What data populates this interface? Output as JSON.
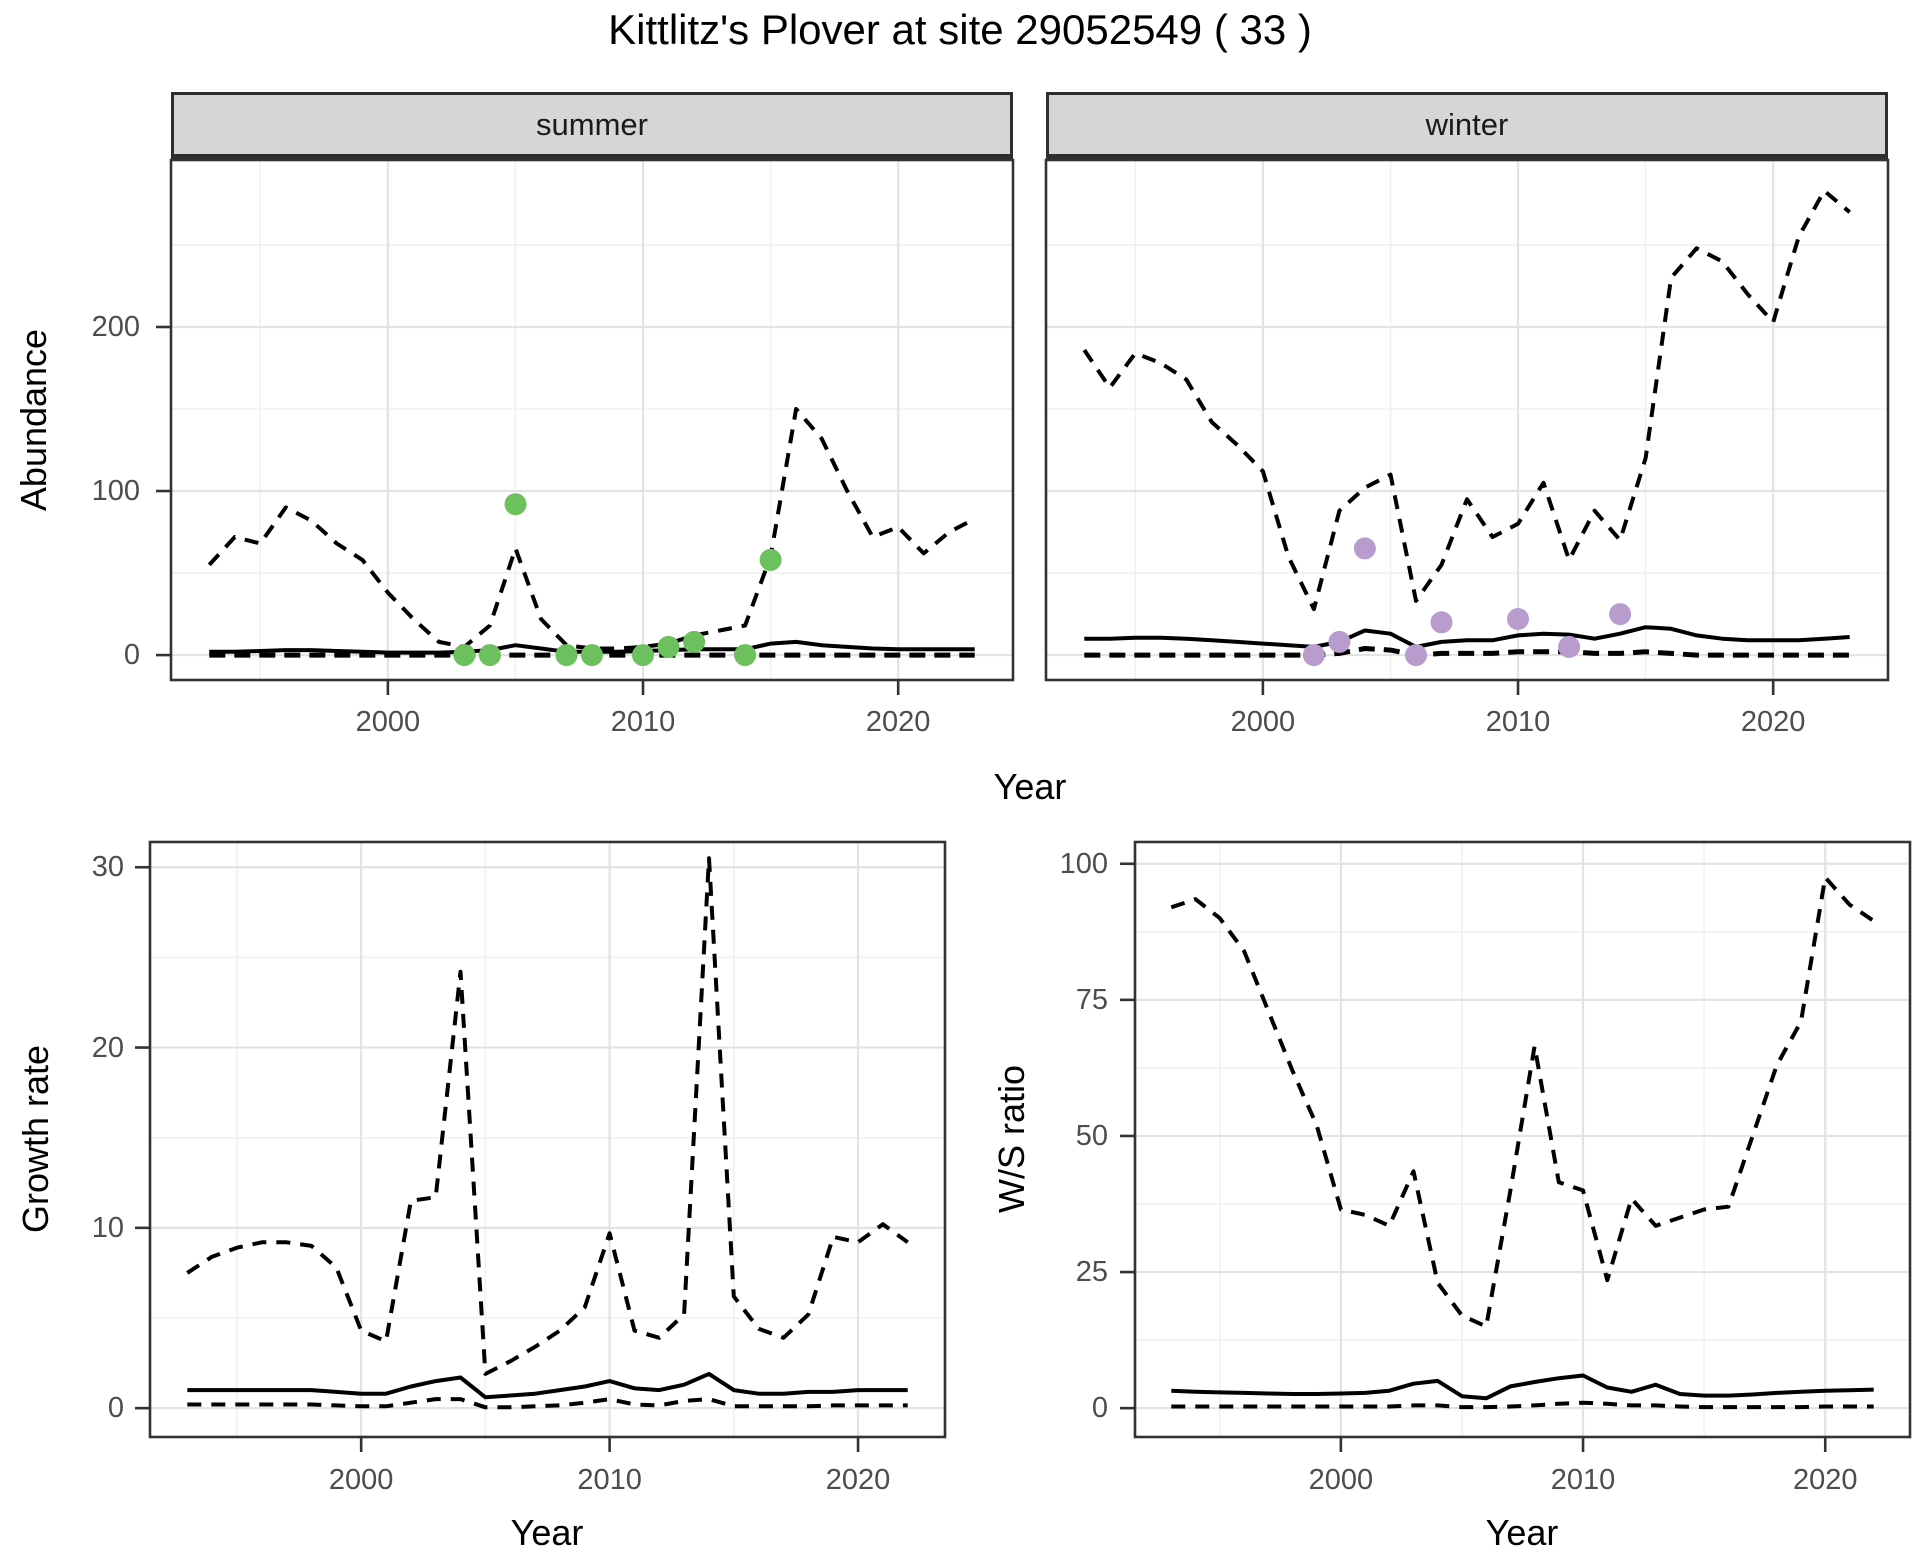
{
  "title": "Kittlitz's Plover at site 29052549 ( 33 )",
  "colors": {
    "summer_points": "#6cc05e",
    "winter_points": "#b79ccd",
    "line": "#000000",
    "grid_major": "#e3e3e3",
    "grid_minor": "#f1f1f1",
    "panel_border": "#333333",
    "tick_mark": "#333333",
    "strip_bg": "#d6d6d6",
    "tick_text": "#4d4d4d"
  },
  "chart_data": [
    {
      "id": "abundance",
      "type": "line",
      "xlabel": "Year",
      "ylabel": "Abundance",
      "grid": "on",
      "legend": "none",
      "x_ticks": [
        2000,
        2010,
        2020
      ],
      "y_ticks": [
        0,
        100,
        200
      ],
      "xlim": [
        1991.5,
        2024.5
      ],
      "ylim": [
        -15.2,
        301.8
      ],
      "years": [
        1993,
        1994,
        1995,
        1996,
        1997,
        1998,
        1999,
        2000,
        2001,
        2002,
        2003,
        2004,
        2005,
        2006,
        2007,
        2008,
        2009,
        2010,
        2011,
        2012,
        2013,
        2014,
        2015,
        2016,
        2017,
        2018,
        2019,
        2020,
        2021,
        2022,
        2023
      ],
      "facets": [
        {
          "label": "summer",
          "series": [
            {
              "name": "upper-ci",
              "style": "dashed",
              "values": [
                55,
                72,
                68,
                90,
                82,
                68,
                58,
                38,
                22,
                8,
                5,
                18,
                65,
                22,
                6,
                4,
                4,
                5,
                7,
                12,
                15,
                18,
                60,
                150,
                132,
                100,
                72,
                78,
                62,
                75,
                83
              ]
            },
            {
              "name": "median",
              "style": "solid",
              "values": [
                2,
                2,
                2.5,
                3,
                3,
                2.5,
                2,
                1.5,
                1.5,
                1.5,
                2,
                3,
                6,
                4,
                2,
                2,
                2,
                2.5,
                3,
                3.5,
                3.5,
                3.5,
                7,
                8,
                6,
                5,
                4,
                3.5,
                3.5,
                3.5,
                3.5
              ]
            },
            {
              "name": "lower-ci",
              "style": "dashed",
              "values": [
                0,
                0,
                0,
                0,
                0,
                0,
                0,
                0,
                0,
                0,
                0,
                0,
                0,
                0,
                0,
                0,
                0,
                0,
                0,
                0,
                0,
                0,
                0,
                0,
                0,
                0,
                0,
                0,
                0,
                0,
                0
              ]
            }
          ],
          "points": {
            "color_key": "summer_points",
            "data": [
              [
                2003,
                0
              ],
              [
                2004,
                0
              ],
              [
                2005,
                92
              ],
              [
                2007,
                0
              ],
              [
                2008,
                0
              ],
              [
                2010,
                0
              ],
              [
                2011,
                5
              ],
              [
                2012,
                8
              ],
              [
                2014,
                0
              ],
              [
                2015,
                58
              ]
            ]
          }
        },
        {
          "label": "winter",
          "series": [
            {
              "name": "upper-ci",
              "style": "dashed",
              "values": [
                186,
                163,
                184,
                178,
                168,
                142,
                128,
                112,
                60,
                28,
                88,
                102,
                110,
                33,
                55,
                95,
                72,
                80,
                105,
                58,
                88,
                70,
                120,
                230,
                248,
                240,
                220,
                203,
                255,
                283,
                270
              ]
            },
            {
              "name": "median",
              "style": "solid",
              "values": [
                10,
                10,
                10.5,
                10.5,
                10,
                9,
                8,
                7,
                6,
                5,
                8,
                15,
                13,
                5,
                8,
                9,
                9,
                12,
                13,
                12.5,
                10,
                13,
                17,
                16,
                12,
                10,
                9,
                9,
                9,
                10,
                11
              ]
            },
            {
              "name": "lower-ci",
              "style": "dashed",
              "values": [
                0,
                0,
                0,
                0,
                0,
                0,
                0,
                0,
                0,
                0,
                1,
                4,
                3,
                0,
                1,
                1,
                1,
                2,
                2,
                2,
                1,
                1,
                2,
                1,
                0,
                0,
                0,
                0,
                0,
                0,
                0
              ]
            }
          ],
          "points": {
            "color_key": "winter_points",
            "data": [
              [
                2002,
                0
              ],
              [
                2003,
                8
              ],
              [
                2004,
                65
              ],
              [
                2006,
                0
              ],
              [
                2007,
                20
              ],
              [
                2010,
                22
              ],
              [
                2012,
                5
              ],
              [
                2014,
                25
              ]
            ]
          }
        }
      ]
    },
    {
      "id": "growth",
      "type": "line",
      "xlabel": "Year",
      "ylabel": "Growth rate",
      "grid": "on",
      "legend": "none",
      "x_ticks": [
        2000,
        2010,
        2020
      ],
      "y_ticks": [
        0,
        10,
        20,
        30
      ],
      "xlim": [
        1991.5,
        2023.5
      ],
      "ylim": [
        -1.6,
        31.4
      ],
      "years": [
        1993,
        1994,
        1995,
        1996,
        1997,
        1998,
        1999,
        2000,
        2001,
        2002,
        2003,
        2004,
        2005,
        2006,
        2007,
        2008,
        2009,
        2010,
        2011,
        2012,
        2013,
        2014,
        2015,
        2016,
        2017,
        2018,
        2019,
        2020,
        2021,
        2022
      ],
      "series": [
        {
          "name": "upper-ci",
          "style": "dashed",
          "values": [
            7.5,
            8.4,
            8.9,
            9.2,
            9.2,
            9.0,
            7.8,
            4.3,
            3.7,
            11.5,
            11.7,
            24.2,
            1.9,
            2.6,
            3.4,
            4.3,
            5.6,
            9.7,
            4.3,
            3.9,
            5.2,
            30.5,
            6.2,
            4.4,
            3.9,
            5.2,
            9.5,
            9.2,
            10.2,
            9.2
          ]
        },
        {
          "name": "median",
          "style": "solid",
          "values": [
            1.0,
            1.0,
            1.0,
            1.0,
            1.0,
            1.0,
            0.9,
            0.8,
            0.8,
            1.2,
            1.5,
            1.7,
            0.6,
            0.7,
            0.8,
            1.0,
            1.2,
            1.5,
            1.1,
            1.0,
            1.3,
            1.9,
            1.0,
            0.8,
            0.8,
            0.9,
            0.9,
            1.0,
            1.0,
            1.0
          ]
        },
        {
          "name": "lower-ci",
          "style": "dashed",
          "values": [
            0.2,
            0.2,
            0.2,
            0.2,
            0.2,
            0.2,
            0.15,
            0.1,
            0.1,
            0.3,
            0.5,
            0.5,
            0.05,
            0.05,
            0.1,
            0.15,
            0.3,
            0.5,
            0.2,
            0.15,
            0.4,
            0.5,
            0.1,
            0.1,
            0.1,
            0.1,
            0.15,
            0.15,
            0.15,
            0.15
          ]
        }
      ]
    },
    {
      "id": "ws-ratio",
      "type": "line",
      "xlabel": "Year",
      "ylabel": "W/S ratio",
      "grid": "on",
      "legend": "none",
      "x_ticks": [
        2000,
        2010,
        2020
      ],
      "y_ticks": [
        0,
        25,
        50,
        75,
        100
      ],
      "xlim": [
        1991.5,
        2023.5
      ],
      "ylim": [
        -5.3,
        104.0
      ],
      "years": [
        1993,
        1994,
        1995,
        1996,
        1997,
        1998,
        1999,
        2000,
        2001,
        2002,
        2003,
        2004,
        2005,
        2006,
        2007,
        2008,
        2009,
        2010,
        2011,
        2012,
        2013,
        2014,
        2015,
        2016,
        2017,
        2018,
        2019,
        2020,
        2021,
        2022
      ],
      "series": [
        {
          "name": "upper-ci",
          "style": "dashed",
          "values": [
            92,
            93.5,
            90,
            84,
            73,
            62,
            52,
            36.5,
            35.5,
            33.5,
            43.5,
            23,
            17,
            15,
            40,
            66.5,
            41.5,
            40,
            23.5,
            38.5,
            33.5,
            35,
            36.5,
            37,
            50,
            63,
            71,
            97.5,
            92.5,
            89.5
          ]
        },
        {
          "name": "median",
          "style": "solid",
          "values": [
            3.2,
            3.0,
            2.9,
            2.8,
            2.7,
            2.6,
            2.6,
            2.7,
            2.8,
            3.2,
            4.5,
            5.0,
            2.2,
            1.8,
            4.0,
            4.8,
            5.5,
            6.0,
            3.8,
            3.0,
            4.3,
            2.6,
            2.3,
            2.3,
            2.5,
            2.8,
            3.0,
            3.2,
            3.3,
            3.4
          ]
        },
        {
          "name": "lower-ci",
          "style": "dashed",
          "values": [
            0.3,
            0.3,
            0.3,
            0.3,
            0.3,
            0.3,
            0.3,
            0.3,
            0.3,
            0.3,
            0.5,
            0.5,
            0.2,
            0.2,
            0.3,
            0.5,
            0.8,
            1.0,
            0.8,
            0.5,
            0.5,
            0.3,
            0.2,
            0.2,
            0.2,
            0.2,
            0.2,
            0.3,
            0.3,
            0.3
          ]
        }
      ]
    }
  ]
}
